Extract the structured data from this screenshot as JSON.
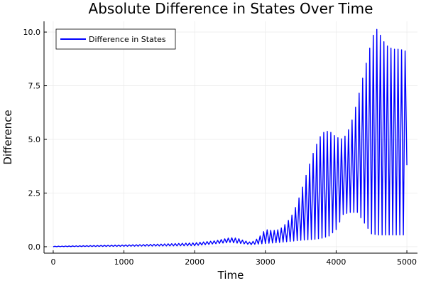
{
  "chart_data": {
    "type": "line",
    "title": "Absolute Difference in States Over Time",
    "xlabel": "Time",
    "ylabel": "Difference",
    "xlim": [
      -130,
      5150
    ],
    "ylim": [
      -0.3,
      10.5
    ],
    "x_ticks": [
      0,
      1000,
      2000,
      3000,
      4000,
      5000
    ],
    "x_tick_labels": [
      "0",
      "1000",
      "2000",
      "3000",
      "4000",
      "5000"
    ],
    "y_ticks": [
      0,
      2.5,
      5,
      7.5,
      10
    ],
    "y_tick_labels": [
      "0.0",
      "2.5",
      "5.0",
      "7.5",
      "10.0"
    ],
    "grid": true,
    "legend_position": "top-left",
    "series": [
      {
        "name": "Difference in States",
        "color": "#0000ff",
        "oscillation_period": 50,
        "upper_envelope": {
          "x": [
            0,
            500,
            1000,
            1500,
            2000,
            2300,
            2500,
            2600,
            2700,
            2800,
            2900,
            3000,
            3100,
            3200,
            3300,
            3400,
            3500,
            3600,
            3700,
            3800,
            3900,
            4000,
            4100,
            4200,
            4300,
            4400,
            4500,
            4560,
            4600,
            4700,
            4800,
            4900,
            4990
          ],
          "y": [
            0.02,
            0.05,
            0.08,
            0.12,
            0.18,
            0.28,
            0.42,
            0.4,
            0.28,
            0.2,
            0.4,
            0.8,
            0.75,
            0.8,
            1.1,
            1.6,
            2.5,
            3.6,
            4.6,
            5.3,
            5.4,
            5.1,
            5.0,
            5.6,
            6.8,
            8.2,
            9.6,
            10.2,
            10.0,
            9.4,
            9.2,
            9.2,
            9.1
          ]
        },
        "lower_envelope": {
          "x": [
            0,
            1000,
            2000,
            2500,
            2800,
            3000,
            3200,
            3500,
            3700,
            3800,
            3900,
            4000,
            4100,
            4200,
            4300,
            4400,
            4500,
            4600,
            4700,
            4800,
            4900,
            4990
          ],
          "y": [
            0.0,
            0.02,
            0.05,
            0.2,
            0.1,
            0.15,
            0.2,
            0.3,
            0.35,
            0.4,
            0.5,
            0.8,
            1.5,
            1.6,
            1.6,
            1.1,
            0.6,
            0.55,
            0.55,
            0.55,
            0.55,
            0.55
          ]
        },
        "end_value": [
          5000,
          3.8
        ]
      }
    ]
  }
}
